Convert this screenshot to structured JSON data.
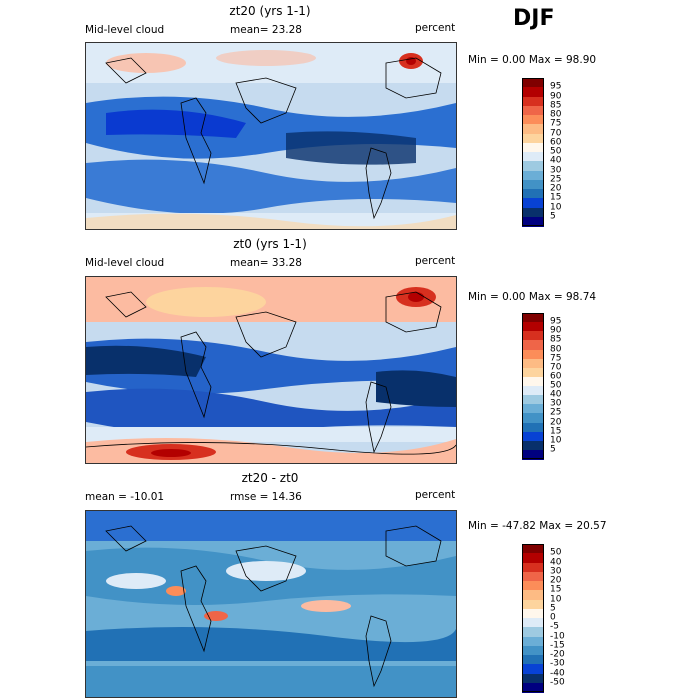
{
  "season": "DJF",
  "panels": [
    {
      "title": "zt20 (yrs 1-1)",
      "left_label": "Mid-level cloud",
      "mid_label": "mean=  23.28",
      "units": "percent",
      "minmax": "Min =   0.00 Max =  98.90",
      "levels": [
        "95",
        "90",
        "85",
        "80",
        "75",
        "70",
        "60",
        "50",
        "40",
        "30",
        "25",
        "20",
        "15",
        "10",
        "5"
      ]
    },
    {
      "title": "zt0 (yrs 1-1)",
      "left_label": "Mid-level cloud",
      "mid_label": "mean=  33.28",
      "units": "percent",
      "minmax": "Min =   0.00 Max =  98.74",
      "levels": [
        "95",
        "90",
        "85",
        "80",
        "75",
        "70",
        "60",
        "50",
        "40",
        "30",
        "25",
        "20",
        "15",
        "10",
        "5"
      ]
    },
    {
      "title": "zt20 - zt0",
      "left_label": "mean = -10.01",
      "mid_label": "rmse =  14.36",
      "units": "percent",
      "minmax": "Min = -47.82 Max =  20.57",
      "levels": [
        "50",
        "40",
        "30",
        "20",
        "15",
        "10",
        "5",
        "0",
        "-5",
        "-10",
        "-15",
        "-20",
        "-30",
        "-40",
        "-50"
      ]
    }
  ],
  "colorbar_colors": [
    "#7f0000",
    "#b30000",
    "#d7301f",
    "#ef6548",
    "#fc8d59",
    "#fdbb84",
    "#fdd49e",
    "#fff7ec",
    "#deebf7",
    "#9ecae1",
    "#6baed6",
    "#4292c6",
    "#2171b5",
    "#0842d4",
    "#08306b",
    "#000080"
  ]
}
